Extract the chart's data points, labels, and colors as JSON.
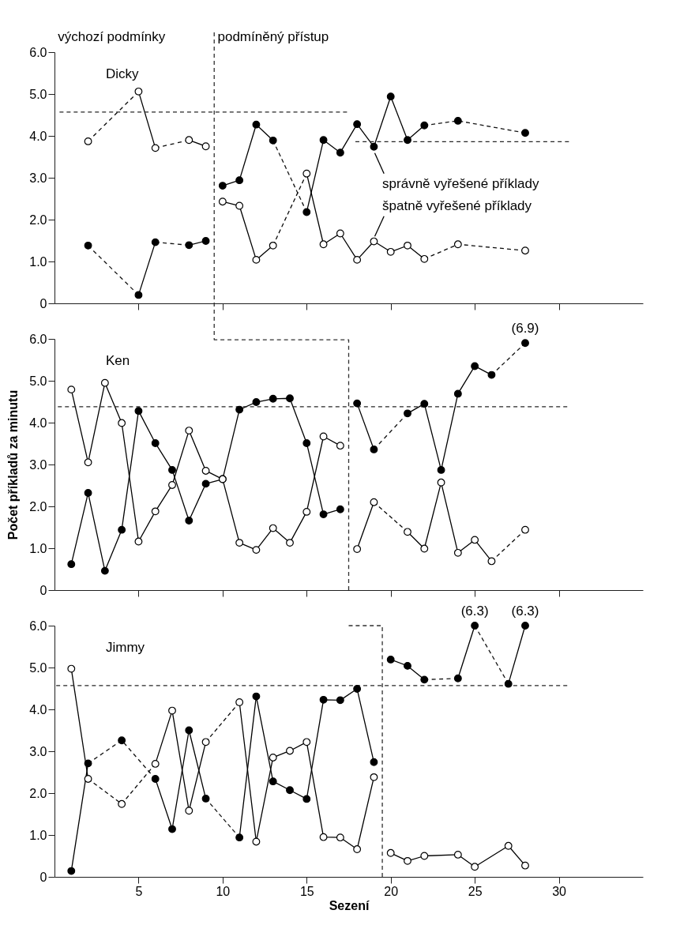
{
  "chart_data": [
    {
      "type": "line",
      "title": "Dicky",
      "xlim": [
        0,
        35
      ],
      "ylim": [
        0,
        6
      ],
      "xticks": [
        5,
        10,
        15,
        20,
        25,
        30
      ],
      "yticks": [
        0,
        {
          "value": 1,
          "label": "1.0"
        },
        {
          "value": 2,
          "label": "2.0"
        },
        {
          "value": 3,
          "label": "3.0"
        },
        {
          "value": 4,
          "label": "4.0"
        },
        {
          "value": 5,
          "label": "5.0"
        },
        {
          "value": 6,
          "label": "6.0"
        }
      ],
      "tick_labels": "y",
      "marker": "circle",
      "series": [
        {
          "color": "#000000",
          "x": [
            2,
            3,
            4,
            5,
            6,
            7,
            8,
            9
          ],
          "values": [
            1.38,
            null,
            null,
            0.2,
            1.46,
            null,
            1.39,
            1.49
          ]
        },
        {
          "color": "#ffffff",
          "x": [
            2,
            3,
            4,
            5,
            6,
            7,
            8,
            9
          ],
          "values": [
            3.87,
            null,
            null,
            5.06,
            3.71,
            null,
            3.9,
            3.75
          ]
        },
        {
          "color": "#000000",
          "x": [
            10,
            11,
            12,
            13,
            14,
            15,
            16,
            17,
            18,
            19,
            20,
            21,
            22,
            23,
            24,
            25,
            26,
            27,
            28
          ],
          "values": [
            2.81,
            2.94,
            4.27,
            3.89,
            null,
            2.18,
            3.9,
            3.6,
            4.28,
            3.74,
            4.94,
            3.9,
            4.25,
            null,
            4.36,
            null,
            null,
            null,
            4.07
          ]
        },
        {
          "color": "#ffffff",
          "x": [
            10,
            11,
            12,
            13,
            14,
            15,
            16,
            17,
            18,
            19,
            20,
            21,
            22,
            23,
            24,
            25,
            26,
            27,
            28
          ],
          "values": [
            2.43,
            2.33,
            1.04,
            1.38,
            null,
            3.1,
            1.41,
            1.67,
            1.04,
            1.48,
            1.23,
            1.38,
            1.06,
            null,
            1.41,
            null,
            null,
            null,
            1.26
          ]
        },
        {
          "color": "#141414",
          "marker": "none",
          "line_style": "dashed",
          "x": [
            2,
            5
          ],
          "values": [
            1.38,
            0.2
          ]
        },
        {
          "color": "#141414",
          "marker": "none",
          "line_style": "dashed",
          "x": [
            6,
            8
          ],
          "values": [
            1.46,
            1.39
          ]
        },
        {
          "color": "#0a0a0a",
          "marker": "none",
          "line_style": "dashed",
          "x": [
            2,
            5
          ],
          "values": [
            3.87,
            5.06
          ]
        },
        {
          "color": "#0a0a0a",
          "marker": "none",
          "line_style": "dashed",
          "x": [
            6,
            8
          ],
          "values": [
            3.71,
            3.9
          ]
        },
        {
          "color": "#141414",
          "marker": "none",
          "line_style": "dashed",
          "x": [
            13,
            15
          ],
          "values": [
            3.89,
            2.18
          ]
        },
        {
          "color": "#141414",
          "marker": "none",
          "line_style": "dashed",
          "x": [
            22,
            24,
            28
          ],
          "values": [
            4.25,
            4.36,
            4.07
          ]
        },
        {
          "color": "#0a0a0a",
          "marker": "none",
          "line_style": "dashed",
          "x": [
            13,
            15
          ],
          "values": [
            1.38,
            3.1
          ]
        },
        {
          "color": "#0a0a0a",
          "marker": "none",
          "line_style": "dashed",
          "x": [
            22,
            24,
            28
          ],
          "values": [
            1.06,
            1.41,
            1.26
          ]
        },
        {
          "color": "#262626",
          "marker": "none",
          "line_style": "dashed",
          "x": [
            0.3,
            17.4
          ],
          "values": [
            4.57,
            4.57
          ]
        },
        {
          "color": "#262626",
          "marker": "none",
          "line_style": "dashed",
          "x": [
            17.9,
            30.6
          ],
          "values": [
            3.86,
            3.86
          ]
        }
      ],
      "ref_lines": [
        {
          "axis": "x",
          "value": 9.5,
          "line_style": "dashed",
          "color": "#303030"
        }
      ],
      "annotations": [
        "výchozí podmínky",
        "podmíněný přístup",
        {
          "text": "správně vyřešené příklady",
          "x": 19,
          "y": 3.74
        },
        {
          "text": "špatně vyřešené příklady",
          "x": 19,
          "y": 1.48
        }
      ]
    },
    {
      "type": "line",
      "title": "Ken",
      "ylabel": "Počet příkladů za minutu",
      "xlim": [
        0,
        35
      ],
      "ylim": [
        0,
        6
      ],
      "xticks": [
        5,
        10,
        15,
        20,
        25,
        30
      ],
      "yticks": [
        0,
        {
          "value": 1,
          "label": "1.0"
        },
        {
          "value": 2,
          "label": "2.0"
        },
        {
          "value": 3,
          "label": "3.0"
        },
        {
          "value": 4,
          "label": "4.0"
        },
        {
          "value": 5,
          "label": "5.0"
        },
        {
          "value": 6,
          "label": "6.0"
        }
      ],
      "tick_labels": "y",
      "marker": "circle",
      "series": [
        {
          "color": "#000000",
          "x": [
            1,
            2,
            3,
            4,
            5,
            6,
            7,
            8,
            9,
            10,
            11,
            12,
            13,
            14,
            15,
            16,
            17
          ],
          "values": [
            0.62,
            2.32,
            0.46,
            1.44,
            4.28,
            3.51,
            2.87,
            1.66,
            2.54,
            2.65,
            4.31,
            4.49,
            4.57,
            4.58,
            3.51,
            1.81,
            1.93
          ]
        },
        {
          "color": "#ffffff",
          "x": [
            1,
            2,
            3,
            4,
            5,
            6,
            7,
            8,
            9,
            10,
            11,
            12,
            13,
            14,
            15,
            16,
            17
          ],
          "values": [
            4.79,
            3.05,
            4.95,
            3.99,
            1.16,
            1.88,
            2.51,
            3.81,
            2.85,
            2.65,
            1.13,
            0.96,
            1.48,
            1.13,
            1.87,
            3.67,
            3.45
          ]
        },
        {
          "color": "#000000",
          "x": [
            18,
            19,
            20,
            21,
            22,
            23,
            24,
            25,
            26,
            27,
            28
          ],
          "values": [
            4.46,
            3.36,
            null,
            4.22,
            4.45,
            2.87,
            4.69,
            5.35,
            5.14,
            null,
            5.9
          ]
        },
        {
          "color": "#ffffff",
          "x": [
            18,
            19,
            20,
            21,
            22,
            23,
            24,
            25,
            26,
            27,
            28
          ],
          "values": [
            0.98,
            2.1,
            null,
            1.39,
            0.99,
            2.57,
            0.89,
            1.2,
            0.69,
            null,
            1.44
          ]
        },
        {
          "color": "#141414",
          "marker": "none",
          "line_style": "dashed",
          "x": [
            19,
            21
          ],
          "values": [
            3.36,
            4.22
          ]
        },
        {
          "color": "#141414",
          "marker": "none",
          "line_style": "dashed",
          "x": [
            26,
            28
          ],
          "values": [
            5.14,
            5.9
          ]
        },
        {
          "color": "#0a0a0a",
          "marker": "none",
          "line_style": "dashed",
          "x": [
            19,
            21
          ],
          "values": [
            2.1,
            1.39
          ]
        },
        {
          "color": "#0a0a0a",
          "marker": "none",
          "line_style": "dashed",
          "x": [
            26,
            28
          ],
          "values": [
            0.69,
            1.44
          ]
        },
        {
          "color": "#262626",
          "marker": "none",
          "line_style": "dashed",
          "x": [
            0.2,
            30.5
          ],
          "values": [
            4.38,
            4.38
          ]
        },
        {
          "color": "#303030",
          "marker": "none",
          "line_style": "dashed",
          "x": [
            9.5,
            9.5,
            17.5,
            17.5
          ],
          "values": [
            6,
            5.98,
            5.98,
            0
          ]
        }
      ],
      "annotations": [
        {
          "text": "(6.9)",
          "x": 28,
          "y": 5.9
        }
      ]
    },
    {
      "type": "line",
      "title": "Jimmy",
      "xlabel": "Sezení",
      "xlim": [
        0,
        35
      ],
      "ylim": [
        0,
        6
      ],
      "xticks": [
        5,
        10,
        15,
        20,
        25,
        30
      ],
      "yticks": [
        0,
        {
          "value": 1,
          "label": "1.0"
        },
        {
          "value": 2,
          "label": "2.0"
        },
        {
          "value": 3,
          "label": "3.0"
        },
        {
          "value": 4,
          "label": "4.0"
        },
        {
          "value": 5,
          "label": "5.0"
        },
        {
          "value": 6,
          "label": "6.0"
        }
      ],
      "marker": "circle",
      "series": [
        {
          "color": "#000000",
          "x": [
            1,
            2,
            3,
            4,
            5,
            6,
            7,
            8,
            9,
            10,
            11,
            12,
            13,
            14,
            15,
            16,
            17,
            18,
            19
          ],
          "values": [
            0.14,
            2.71,
            null,
            3.26,
            null,
            2.34,
            1.14,
            3.5,
            1.87,
            null,
            0.94,
            4.31,
            2.28,
            2.07,
            1.86,
            4.23,
            4.22,
            4.49,
            2.74
          ]
        },
        {
          "color": "#ffffff",
          "x": [
            1,
            2,
            3,
            4,
            5,
            6,
            7,
            8,
            9,
            10,
            11,
            12,
            13,
            14,
            15,
            16,
            17,
            18,
            19
          ],
          "values": [
            4.97,
            2.34,
            null,
            1.74,
            null,
            2.7,
            3.97,
            1.58,
            3.22,
            null,
            4.17,
            0.84,
            2.85,
            3.01,
            3.22,
            0.95,
            0.94,
            0.66,
            2.38
          ]
        },
        {
          "color": "#000000",
          "x": [
            20,
            21,
            22,
            23,
            24,
            25,
            26,
            27,
            28
          ],
          "values": [
            5.19,
            5.04,
            4.71,
            null,
            4.74,
            6.0,
            null,
            4.61,
            6.0
          ]
        },
        {
          "color": "#ffffff",
          "x": [
            20,
            21,
            22,
            24,
            25,
            27,
            28
          ],
          "values": [
            0.57,
            0.38,
            0.5,
            0.53,
            0.24,
            0.74,
            0.27
          ]
        },
        {
          "color": "#141414",
          "marker": "none",
          "line_style": "dashed",
          "x": [
            2,
            4,
            6
          ],
          "values": [
            2.71,
            3.26,
            2.34
          ]
        },
        {
          "color": "#141414",
          "marker": "none",
          "line_style": "dashed",
          "x": [
            9,
            11
          ],
          "values": [
            1.87,
            0.94
          ]
        },
        {
          "color": "#0a0a0a",
          "marker": "none",
          "line_style": "dashed",
          "x": [
            2,
            4,
            6
          ],
          "values": [
            2.34,
            1.74,
            2.7
          ]
        },
        {
          "color": "#0a0a0a",
          "marker": "none",
          "line_style": "dashed",
          "x": [
            9,
            11
          ],
          "values": [
            3.22,
            4.17
          ]
        },
        {
          "color": "#141414",
          "marker": "none",
          "line_style": "dashed",
          "x": [
            22,
            24
          ],
          "values": [
            4.71,
            4.74
          ]
        },
        {
          "color": "#141414",
          "marker": "none",
          "line_style": "dashed",
          "x": [
            25,
            27
          ],
          "values": [
            6.0,
            4.61
          ]
        },
        {
          "color": "#262626",
          "marker": "none",
          "line_style": "dashed",
          "x": [
            0.1,
            30.5
          ],
          "values": [
            4.57,
            4.57
          ]
        },
        {
          "color": "#303030",
          "marker": "none",
          "line_style": "dashed",
          "x": [
            17.5,
            19.5,
            19.5
          ],
          "values": [
            6.0,
            6.0,
            0
          ]
        }
      ],
      "annotations": [
        {
          "text": "(6.3)",
          "x": 25,
          "y": 6.0
        },
        {
          "text": "(6.3)",
          "x": 28,
          "y": 6.0
        }
      ]
    }
  ]
}
